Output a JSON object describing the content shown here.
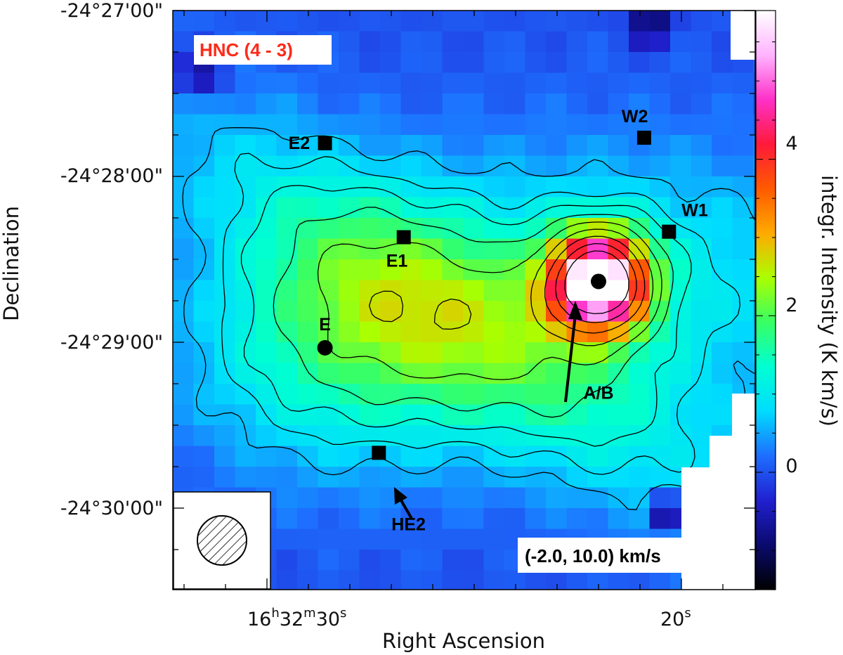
{
  "chart_data": {
    "type": "heatmap",
    "title": "HNC (4 - 3)",
    "title_color": "#ff2a1a",
    "velocity_range_label": "(-2.0, 10.0) km/s",
    "xlabel": "Right Ascension",
    "ylabel": "Declination",
    "colorbar_label": "integr. Intensity (K km/s)",
    "colorbar_ticks": [
      "0",
      "2",
      "4"
    ],
    "colorbar_range": [
      -1.5,
      5.9
    ],
    "x_ticks": [
      {
        "h": "16",
        "m": "32",
        "s": "30"
      },
      {
        "h": "",
        "m": "",
        "s": "20"
      }
    ],
    "y_ticks": [
      "-24°27'00\"",
      "-24°28'00\"",
      "-24°29'00\"",
      "-24°30'00\""
    ],
    "colormap": [
      "#000000",
      "#0a0a6e",
      "#2020d0",
      "#1e6eff",
      "#00dcff",
      "#00ffd2",
      "#38ff64",
      "#aaff00",
      "#ffaa00",
      "#ff5a00",
      "#ff1a3a",
      "#ff30c8",
      "#ffb4ff",
      "#ffffff"
    ],
    "sources": [
      {
        "name": "E2",
        "marker": "square",
        "ra_s": 28.6,
        "dec": "-24°27'48\""
      },
      {
        "name": "W2",
        "marker": "square",
        "ra_s": 20.9,
        "dec": "-24°27'46\""
      },
      {
        "name": "W1",
        "marker": "square",
        "ra_s": 20.3,
        "dec": "-24°28'20\""
      },
      {
        "name": "E1",
        "marker": "square",
        "ra_s": 26.7,
        "dec": "-24°28'22\""
      },
      {
        "name": "E",
        "marker": "circle",
        "ra_s": 28.6,
        "dec": "-24°29'02\""
      },
      {
        "name": "A/B",
        "marker": "circle",
        "ra_s": 22.0,
        "dec": "-24°28'38\""
      },
      {
        "name": "HE2",
        "marker": "square",
        "ra_s": 27.3,
        "dec": "-24°29'40\""
      }
    ],
    "peak_intensity": 5.6,
    "contour_levels": [
      0.6,
      0.9,
      1.2,
      1.6,
      2.1,
      2.7,
      3.4,
      4.2,
      5.0
    ]
  }
}
